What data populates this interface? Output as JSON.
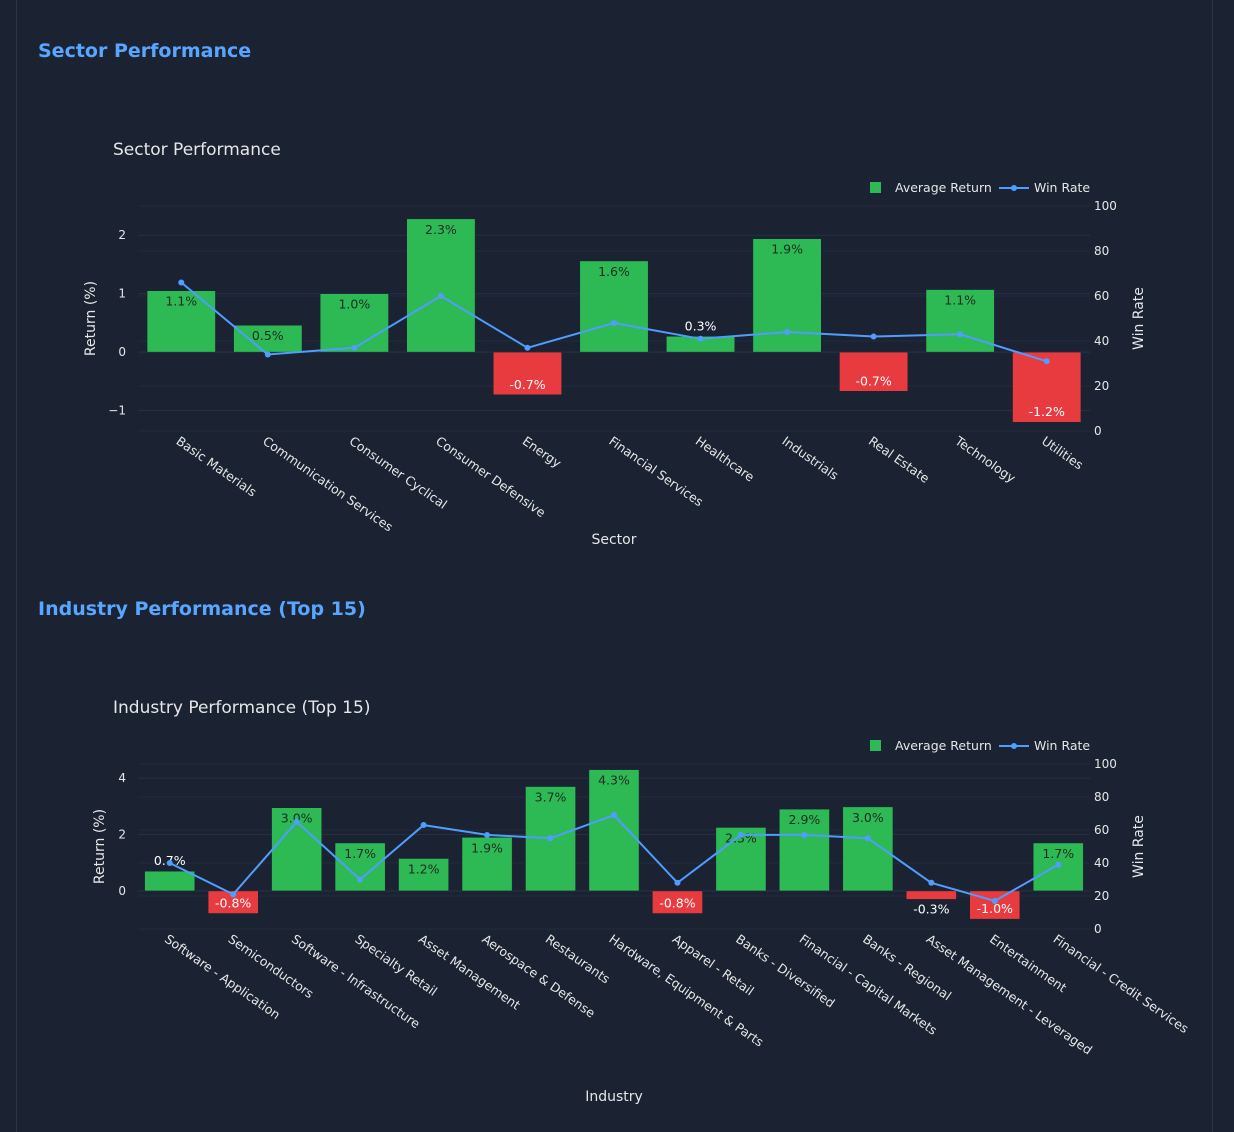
{
  "page": {
    "sector_heading": "Sector Performance",
    "industry_heading": "Industry Performance (Top 15)"
  },
  "colors": {
    "background": "#1b2333",
    "heading": "#58a6ff",
    "positive_bar": "#2dba55",
    "negative_bar": "#e83b3f",
    "line": "#4f9dff",
    "text": "#e6e6e6",
    "grid": "#263042"
  },
  "chart_data": [
    {
      "type": "bar",
      "title": "Sector Performance",
      "xlabel": "Sector",
      "ylabel": "Return (%)",
      "y2label": "Win Rate",
      "ylim": [
        -1.35,
        2.5
      ],
      "y_ticks": [
        -1,
        0,
        1,
        2
      ],
      "y_tick_labels": [
        "−1",
        "0",
        "1",
        "2"
      ],
      "y2lim": [
        0,
        100
      ],
      "y2_ticks": [
        0,
        20,
        40,
        60,
        80,
        100
      ],
      "legend_position": "top-right",
      "categories": [
        "Basic Materials",
        "Communication Services",
        "Consumer Cyclical",
        "Consumer Defensive",
        "Energy",
        "Financial Services",
        "Healthcare",
        "Industrials",
        "Real Estate",
        "Technology",
        "Utilities"
      ],
      "series": [
        {
          "name": "Average Return",
          "axis": "left",
          "values": [
            1.05,
            0.46,
            1.0,
            2.28,
            -0.73,
            1.56,
            0.27,
            1.94,
            -0.67,
            1.07,
            -1.2
          ],
          "labels": [
            "1.1%",
            "0.5%",
            "1.0%",
            "2.3%",
            "-0.7%",
            "1.6%",
            "0.3%",
            "1.9%",
            "-0.7%",
            "1.1%",
            "-1.2%"
          ]
        },
        {
          "name": "Win Rate",
          "axis": "right",
          "type": "line",
          "values": [
            66,
            34,
            37,
            60,
            37,
            48,
            41,
            44,
            42,
            43,
            31
          ]
        }
      ]
    },
    {
      "type": "bar",
      "title": "Industry Performance (Top 15)",
      "xlabel": "Industry",
      "ylabel": "Return (%)",
      "y2label": "Win Rate",
      "ylim": [
        -1.35,
        4.5
      ],
      "y_ticks": [
        0,
        2,
        4
      ],
      "y_tick_labels": [
        "0",
        "2",
        "4"
      ],
      "y2lim": [
        0,
        100
      ],
      "y2_ticks": [
        0,
        20,
        40,
        60,
        80,
        100
      ],
      "legend_position": "top-right",
      "categories": [
        "Software - Application",
        "Semiconductors",
        "Software - Infrastructure",
        "Specialty Retail",
        "Asset Management",
        "Aerospace & Defense",
        "Restaurants",
        "Hardware, Equipment & Parts",
        "Apparel - Retail",
        "Banks - Diversified",
        "Financial - Capital Markets",
        "Banks - Regional",
        "Asset Management - Leveraged",
        "Entertainment",
        "Financial - Credit Services"
      ],
      "series": [
        {
          "name": "Average Return",
          "axis": "left",
          "values": [
            0.7,
            -0.8,
            2.95,
            1.7,
            1.15,
            1.9,
            3.7,
            4.3,
            -0.8,
            2.25,
            2.9,
            2.98,
            -0.3,
            -1.0,
            1.7
          ],
          "labels": [
            "0.7%",
            "-0.8%",
            "3.0%",
            "1.7%",
            "1.2%",
            "1.9%",
            "3.7%",
            "4.3%",
            "-0.8%",
            "2.3%",
            "2.9%",
            "3.0%",
            "-0.3%",
            "-1.0%",
            "1.7%"
          ]
        },
        {
          "name": "Win Rate",
          "axis": "right",
          "type": "line",
          "values": [
            40,
            21,
            65,
            30,
            63,
            57,
            55,
            69,
            28,
            57,
            57,
            55,
            28,
            17,
            39
          ]
        }
      ]
    }
  ]
}
